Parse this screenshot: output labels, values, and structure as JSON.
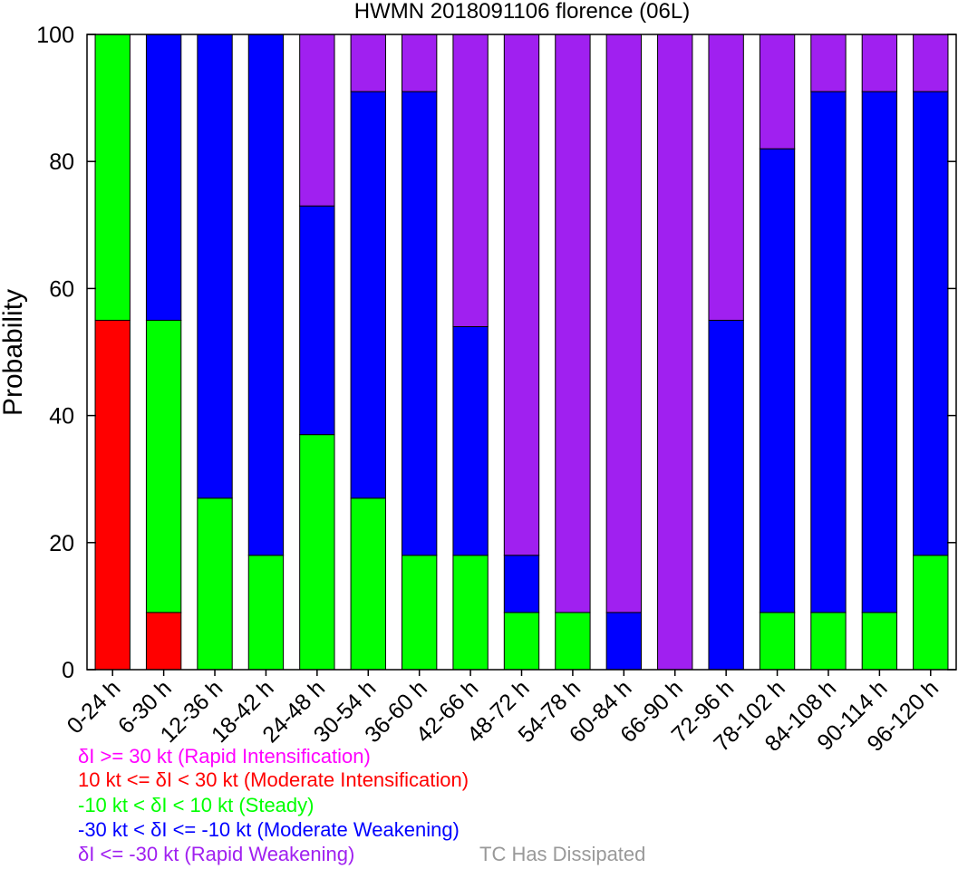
{
  "chart_data": {
    "type": "bar",
    "stacked": true,
    "title": "HWMN 2018091106 florence (06L)",
    "ylabel": "Probability",
    "xlabel": "",
    "ylim": [
      0,
      100
    ],
    "yticks": [
      0,
      20,
      40,
      60,
      80,
      100
    ],
    "categories": [
      "0-24 h",
      "6-30 h",
      "12-36 h",
      "18-42 h",
      "24-48 h",
      "30-54 h",
      "36-60 h",
      "42-66 h",
      "48-72 h",
      "54-78 h",
      "60-84 h",
      "66-90 h",
      "72-96 h",
      "78-102 h",
      "84-108 h",
      "90-114 h",
      "96-120 h"
    ],
    "series": [
      {
        "name": "Moderate Intensification",
        "color": "#ff0000",
        "values": [
          55,
          9,
          0,
          0,
          0,
          0,
          0,
          0,
          0,
          0,
          0,
          0,
          0,
          0,
          0,
          0,
          0
        ]
      },
      {
        "name": "Steady",
        "color": "#00ff00",
        "values": [
          45,
          46,
          27,
          18,
          37,
          27,
          18,
          18,
          9,
          9,
          0,
          0,
          0,
          9,
          9,
          9,
          18
        ]
      },
      {
        "name": "Moderate Weakening",
        "color": "#0000ff",
        "values": [
          0,
          45,
          73,
          82,
          36,
          64,
          73,
          36,
          9,
          0,
          9,
          0,
          55,
          73,
          82,
          82,
          73
        ]
      },
      {
        "name": "Rapid Weakening",
        "color": "#a020f0",
        "values": [
          0,
          0,
          0,
          0,
          27,
          9,
          9,
          46,
          82,
          91,
          91,
          100,
          45,
          18,
          9,
          9,
          9
        ]
      }
    ],
    "grid": false
  },
  "legend": {
    "ri": {
      "text": "δI >= 30 kt (Rapid Intensification)",
      "color": "#ff00ff"
    },
    "mi": {
      "text": "10 kt <= δI < 30 kt (Moderate Intensification)",
      "color": "#ff0000"
    },
    "st": {
      "text": "-10 kt < δI < 10 kt (Steady)",
      "color": "#00ff00"
    },
    "mw": {
      "text": "-30 kt < δI <= -10 kt (Moderate Weakening)",
      "color": "#0000ff"
    },
    "rw": {
      "text": "δI <= -30 kt (Rapid Weakening)",
      "color": "#a020f0"
    },
    "dissipated": {
      "text": "TC Has Dissipated",
      "color": "#999999"
    }
  }
}
